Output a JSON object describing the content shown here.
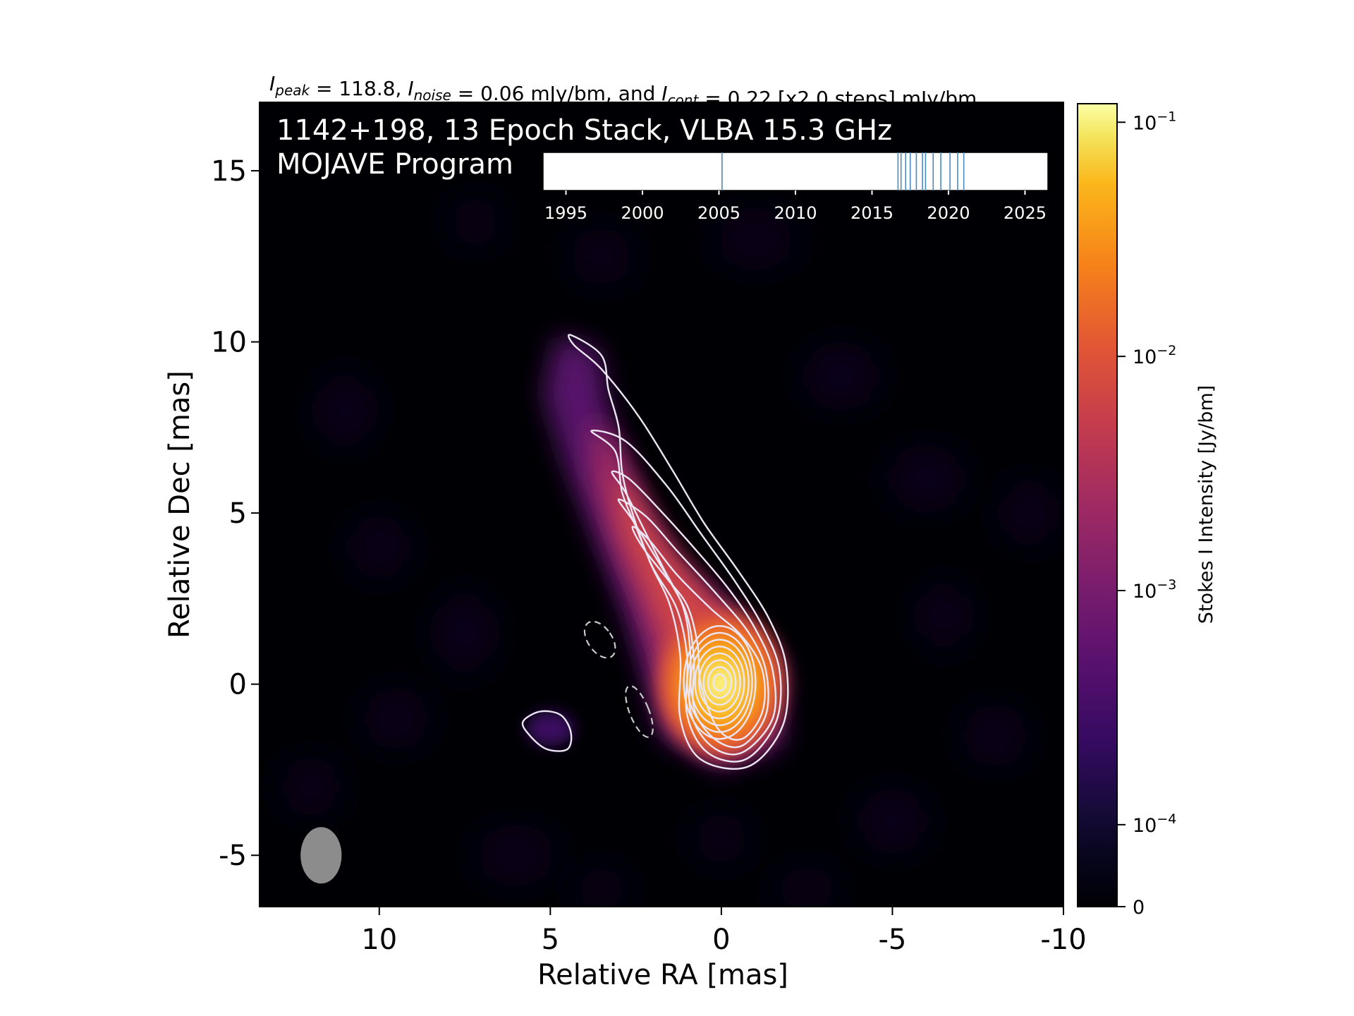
{
  "chart_data": {
    "type": "heatmap",
    "title_parts": [
      {
        "text": "I",
        "style": "italic"
      },
      {
        "text": "peak",
        "style": "italic-sub"
      },
      {
        "text": " = 118.8, ",
        "style": "normal"
      },
      {
        "text": "I",
        "style": "italic"
      },
      {
        "text": "noise",
        "style": "italic-sub"
      },
      {
        "text": " = 0.06 mJy/bm, and ",
        "style": "normal"
      },
      {
        "text": "I",
        "style": "italic"
      },
      {
        "text": "cont",
        "style": "italic-sub"
      },
      {
        "text": " = 0.22 [x2.0 steps] mJy/bm",
        "style": "normal"
      }
    ],
    "overlay_lines": [
      "1142+198, 13 Epoch Stack, VLBA 15.3 GHz",
      "MOJAVE Program"
    ],
    "xlabel": "Relative RA [mas]",
    "ylabel": "Relative Dec [mas]",
    "xlim": [
      13.5,
      -10
    ],
    "ylim": [
      -6.5,
      17
    ],
    "xticks": [
      10,
      5,
      0,
      -5,
      -10
    ],
    "xtick_labels": [
      "10",
      "5",
      "0",
      "-5",
      "-10"
    ],
    "yticks": [
      -5,
      0,
      5,
      10,
      15
    ],
    "ytick_labels": [
      "-5",
      "0",
      "5",
      "10",
      "15"
    ],
    "colorbar": {
      "label": "Stokes I Intensity [Jy/bm]",
      "scale": "symlog",
      "range": [
        0,
        0.12
      ],
      "ticks": [
        {
          "value": 0,
          "label": "0"
        },
        {
          "value": 0.0001,
          "label": "10",
          "exp": "−4"
        },
        {
          "value": 0.001,
          "label": "10",
          "exp": "−3"
        },
        {
          "value": 0.01,
          "label": "10",
          "exp": "−2"
        },
        {
          "value": 0.1,
          "label": "10",
          "exp": "−1"
        }
      ],
      "colormap": "inferno"
    },
    "peak_position": [
      0,
      0
    ],
    "contour_levels_mJy": [
      0.22,
      0.44,
      0.88,
      1.76,
      3.52,
      7.04,
      14.08,
      28.16,
      56.32,
      112.64
    ],
    "negative_contour_mJy": -0.22,
    "beam": {
      "ra": 11.7,
      "dec": -5.0,
      "major_mas": 1.65,
      "minor_mas": 1.2,
      "pa_deg": 0
    },
    "epoch_inset": {
      "xlim": [
        1993.5,
        2026.5
      ],
      "ticks": [
        1995,
        2000,
        2005,
        2010,
        2015,
        2020,
        2025
      ],
      "tick_labels": [
        "1995",
        "2000",
        "2005",
        "2010",
        "2015",
        "2020",
        "2025"
      ],
      "epochs": [
        2005.2,
        2016.7,
        2016.9,
        2017.2,
        2017.5,
        2017.9,
        2018.3,
        2018.5,
        2019.0,
        2019.5,
        2020.1,
        2020.6,
        2021.0
      ]
    }
  }
}
